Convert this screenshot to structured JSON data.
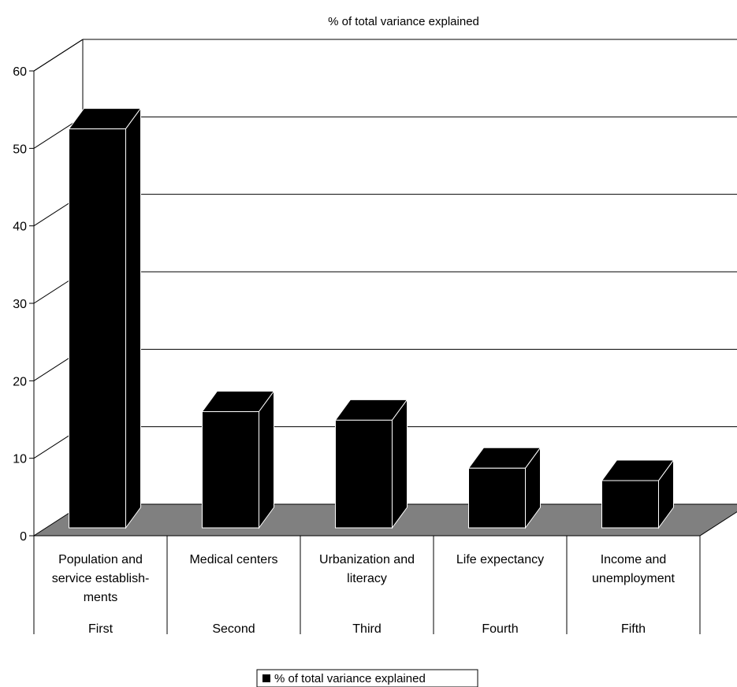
{
  "chart_data": {
    "type": "bar",
    "title": "% of total variance explained",
    "categories": [
      {
        "lines": [
          "Population and",
          "service establish-",
          "ments"
        ],
        "group": "First"
      },
      {
        "lines": [
          "Medical centers"
        ],
        "group": "Second"
      },
      {
        "lines": [
          "Urbanization and",
          "literacy"
        ],
        "group": "Third"
      },
      {
        "lines": [
          "Life expectancy"
        ],
        "group": "Fourth"
      },
      {
        "lines": [
          "Income and",
          "unemployment"
        ],
        "group": "Fifth"
      }
    ],
    "series": [
      {
        "name": "% of total variance explained",
        "values": [
          51.5,
          15.0,
          13.9,
          7.7,
          6.1
        ]
      }
    ],
    "yticks": [
      0,
      10,
      20,
      30,
      40,
      50,
      60
    ],
    "ylim": [
      0,
      60
    ],
    "grid": true,
    "legend_position": "bottom",
    "colors": {
      "bar": "#000000",
      "floor": "#808080",
      "grid": "#000000",
      "background": "#ffffff"
    }
  }
}
